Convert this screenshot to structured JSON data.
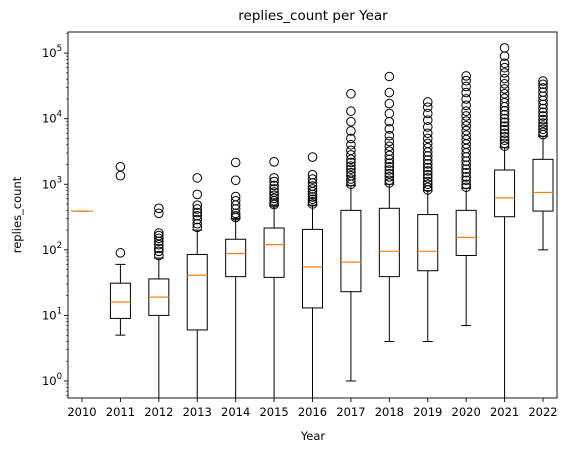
{
  "chart_data": {
    "type": "box",
    "title": "replies_count per Year",
    "xlabel": "Year",
    "ylabel": "replies_count",
    "yscale": "log",
    "ylim": [
      0.55,
      210000
    ],
    "yticks": [
      {
        "value": 1,
        "base": "10",
        "exp": "0"
      },
      {
        "value": 10,
        "base": "10",
        "exp": "1"
      },
      {
        "value": 100,
        "base": "10",
        "exp": "2"
      },
      {
        "value": 1000,
        "base": "10",
        "exp": "3"
      },
      {
        "value": 10000,
        "base": "10",
        "exp": "4"
      },
      {
        "value": 100000,
        "base": "10",
        "exp": "5"
      }
    ],
    "grid": false,
    "colors": {
      "box": "#000000",
      "median": "#ff7f0e",
      "flier": "#000000"
    },
    "categories": [
      "2010",
      "2011",
      "2012",
      "2013",
      "2014",
      "2015",
      "2016",
      "2017",
      "2018",
      "2019",
      "2020",
      "2021",
      "2022"
    ],
    "boxes": [
      {
        "year": "2010",
        "whislo": 390,
        "q1": 390,
        "med": 390,
        "q3": 390,
        "whishi": 390,
        "fliers": []
      },
      {
        "year": "2011",
        "whislo": 5,
        "q1": 9,
        "med": 16,
        "q3": 31,
        "whishi": 60,
        "fliers": [
          90,
          1350,
          1850
        ]
      },
      {
        "year": "2012",
        "whislo": 0.5,
        "q1": 10,
        "med": 19,
        "q3": 36,
        "whishi": 75,
        "fliers": [
          82,
          95,
          105,
          120,
          135,
          150,
          165,
          180,
          360,
          430
        ]
      },
      {
        "year": "2013",
        "whislo": 0.5,
        "q1": 6,
        "med": 41,
        "q3": 85,
        "whishi": 200,
        "fliers": [
          220,
          250,
          290,
          330,
          370,
          420,
          480,
          700,
          1250
        ]
      },
      {
        "year": "2014",
        "whislo": 0.5,
        "q1": 39,
        "med": 88,
        "q3": 145,
        "whishi": 300,
        "fliers": [
          310,
          330,
          360,
          420,
          480,
          560,
          650,
          1150,
          2150
        ]
      },
      {
        "year": "2015",
        "whislo": 0.5,
        "q1": 38,
        "med": 120,
        "q3": 215,
        "whishi": 470,
        "fliers": [
          490,
          520,
          560,
          610,
          680,
          760,
          850,
          960,
          1100,
          1250,
          2200
        ]
      },
      {
        "year": "2016",
        "whislo": 0.5,
        "q1": 13,
        "med": 55,
        "q3": 205,
        "whishi": 480,
        "fliers": [
          500,
          540,
          590,
          640,
          700,
          770,
          850,
          940,
          1050,
          1200,
          1400,
          2600
        ]
      },
      {
        "year": "2017",
        "whislo": 1,
        "q1": 23,
        "med": 65,
        "q3": 400,
        "whishi": 950,
        "fliers": [
          1000,
          1100,
          1200,
          1350,
          1500,
          1700,
          1900,
          2150,
          2400,
          2800,
          3300,
          4000,
          5000,
          6500,
          9000,
          13000,
          24000
        ]
      },
      {
        "year": "2018",
        "whislo": 4,
        "q1": 39,
        "med": 95,
        "q3": 430,
        "whishi": 1000,
        "fliers": [
          1050,
          1150,
          1300,
          1450,
          1650,
          1850,
          2100,
          2400,
          2750,
          3200,
          3800,
          4500,
          5500,
          7000,
          9000,
          12000,
          17000,
          25000,
          44000
        ]
      },
      {
        "year": "2019",
        "whislo": 4,
        "q1": 48,
        "med": 95,
        "q3": 345,
        "whishi": 800,
        "fliers": [
          820,
          900,
          1000,
          1100,
          1250,
          1400,
          1600,
          1800,
          2050,
          2350,
          2700,
          3100,
          3600,
          4200,
          5000,
          6000,
          7500,
          9500,
          12000,
          15000,
          18000
        ]
      },
      {
        "year": "2020",
        "whislo": 7,
        "q1": 82,
        "med": 155,
        "q3": 400,
        "whishi": 870,
        "fliers": [
          900,
          1000,
          1150,
          1300,
          1500,
          1700,
          1950,
          2250,
          2600,
          3000,
          3500,
          4100,
          4800,
          5600,
          6600,
          7800,
          9200,
          11000,
          13000,
          16000,
          20000,
          25000,
          31000,
          38000,
          45000
        ]
      },
      {
        "year": "2021",
        "whislo": 0.5,
        "q1": 320,
        "med": 620,
        "q3": 1650,
        "whishi": 3600,
        "fliers": [
          3800,
          4200,
          4700,
          5300,
          6000,
          6800,
          7700,
          8800,
          10000,
          11500,
          13200,
          15200,
          17500,
          20500,
          24000,
          28500,
          34000,
          41000,
          50000,
          60000,
          70000,
          90000,
          120000
        ]
      },
      {
        "year": "2022",
        "whislo": 100,
        "q1": 390,
        "med": 750,
        "q3": 2400,
        "whishi": 5400,
        "fliers": [
          5700,
          6200,
          6900,
          7700,
          8600,
          9700,
          11000,
          12500,
          14300,
          16500,
          19000,
          22000,
          25500,
          29500,
          33500,
          37500
        ]
      }
    ]
  }
}
